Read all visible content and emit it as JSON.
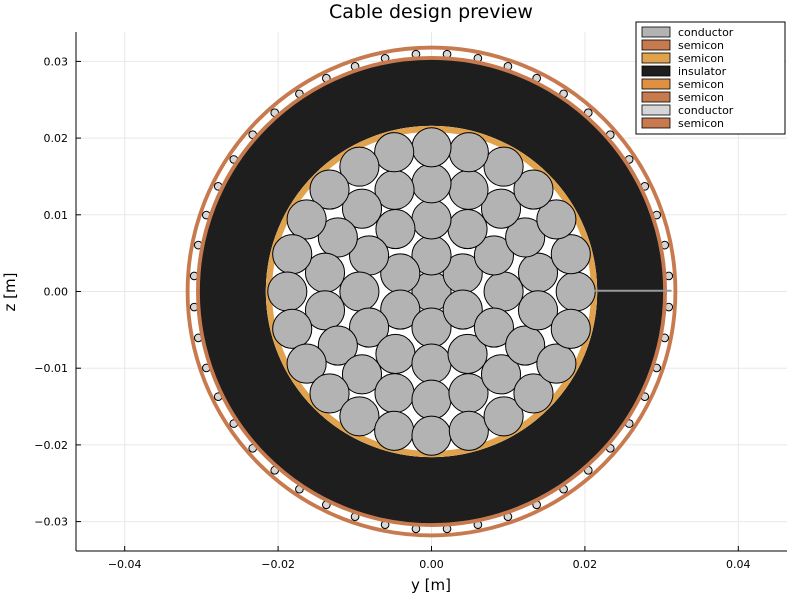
{
  "chart_data": {
    "type": "scatter",
    "title": "Cable design preview",
    "xlabel": "y [m]",
    "ylabel": "z [m]",
    "xlim": [
      -0.0466,
      0.0466
    ],
    "ylim": [
      -0.0337,
      0.0337
    ],
    "xticks": [
      -0.04,
      -0.02,
      0.0,
      0.02,
      0.04
    ],
    "xtick_labels": [
      "−0.04",
      "−0.02",
      "0.00",
      "0.02",
      "0.04"
    ],
    "yticks": [
      -0.03,
      -0.02,
      -0.01,
      0.0,
      0.01,
      0.02,
      0.03
    ],
    "ytick_labels": [
      "−0.03",
      "−0.02",
      "−0.01",
      "0.00",
      "0.01",
      "0.02",
      "0.03"
    ],
    "grid": true,
    "legend_position": "top-right",
    "colors": {
      "conductor": "#b3b3b3",
      "semicon_outer": "#c87a4f",
      "semicon_inner": "#e0a24d",
      "insulator": "#1e1e1e",
      "neutral_wire": "#d6d6d6"
    },
    "layers": [
      {
        "name": "conductor",
        "role": "core",
        "color": "#b3b3b3"
      },
      {
        "name": "semicon",
        "color": "#c87a4f"
      },
      {
        "name": "semicon",
        "color": "#e0a24d"
      },
      {
        "name": "insulator",
        "color": "#1e1e1e"
      },
      {
        "name": "semicon",
        "color": "#df9040"
      },
      {
        "name": "semicon",
        "color": "#c87a4f"
      },
      {
        "name": "conductor",
        "role": "wire screen",
        "color": "#d6d6d6"
      },
      {
        "name": "semicon",
        "color": "#c87a4f"
      }
    ],
    "core": {
      "wire_radius": 0.00255,
      "rings": [
        {
          "count": 1,
          "radius": 0.0
        },
        {
          "count": 6,
          "radius": 0.0047
        },
        {
          "count": 12,
          "radius": 0.0094
        },
        {
          "count": 18,
          "radius": 0.0141
        },
        {
          "count": 24,
          "radius": 0.0188
        }
      ]
    },
    "rings": {
      "inner_semicon_outer_radius": 0.0216,
      "inner_semicon_width": 0.0008,
      "insulator_inner_radius": 0.0216,
      "insulator_outer_radius": 0.0302,
      "outer_semicon_radius": 0.0304,
      "outer_semicon_width": 0.0006,
      "screen_wire_ring_radius": 0.031,
      "screen_wire_radius": 0.0005,
      "screen_wire_count": 48,
      "outer_jacket_radius": 0.0318,
      "outer_jacket_width": 0.0005
    },
    "lead_line": {
      "from": [
        0.0212,
        0.0001
      ],
      "to": [
        0.0313,
        0.0001
      ],
      "color": "#9a9a9a"
    }
  }
}
